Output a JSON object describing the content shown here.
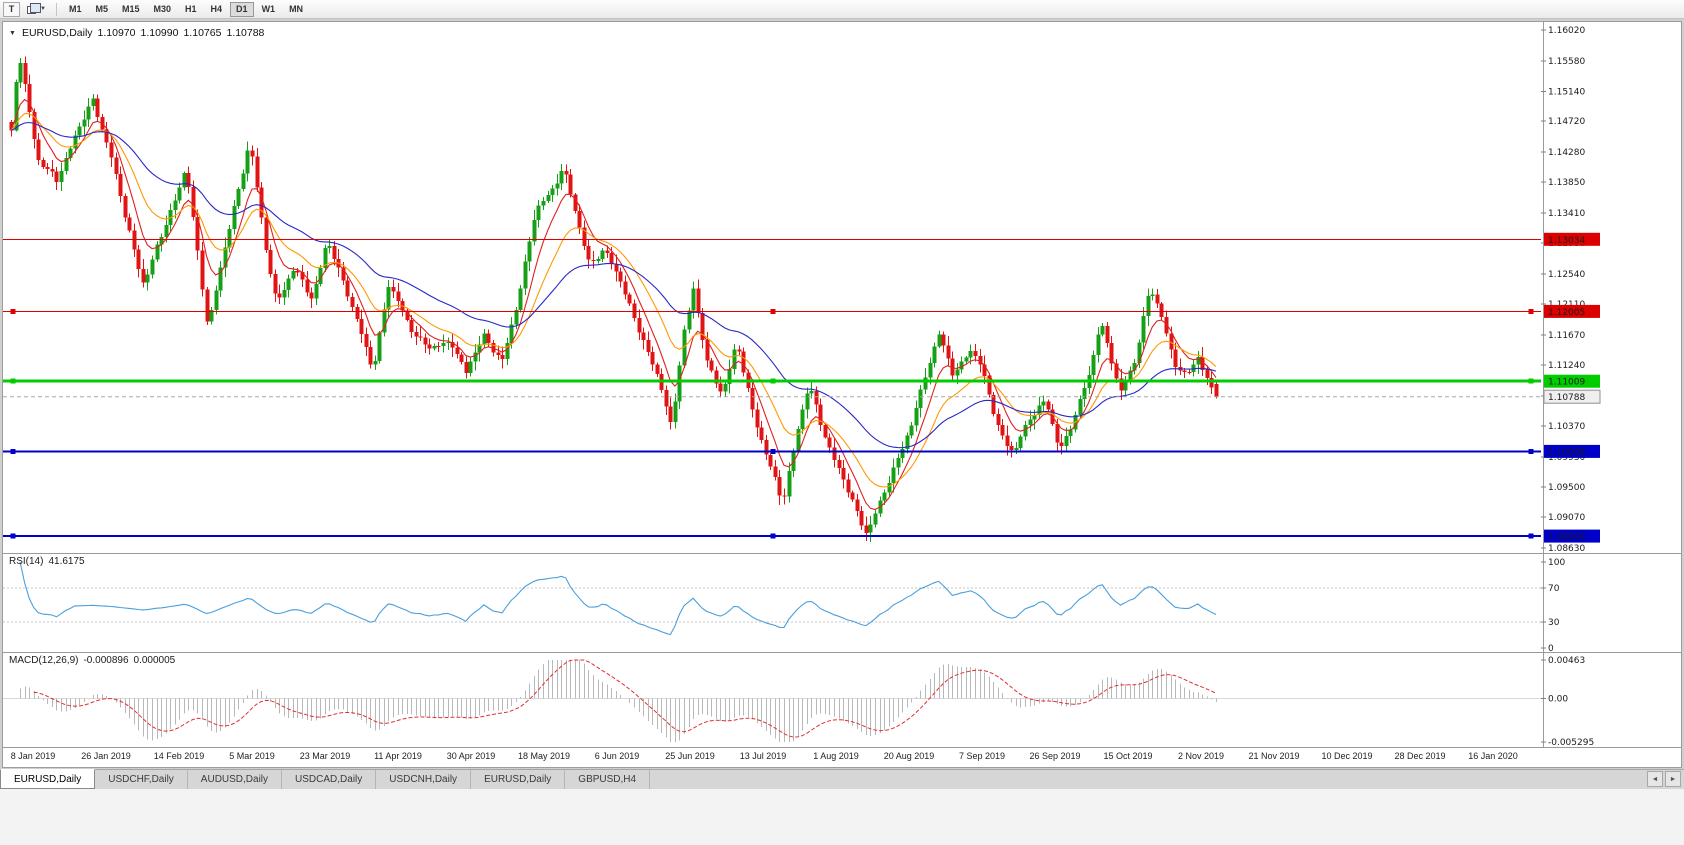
{
  "toolbar": {
    "tool_button": "T",
    "timeframes": [
      "M1",
      "M5",
      "M15",
      "M30",
      "H1",
      "H4",
      "D1",
      "W1",
      "MN"
    ],
    "active_timeframe": "D1"
  },
  "icons": {
    "collapse_arrow": "▼",
    "dropdown_caret": "▼",
    "scroll_left": "◄",
    "scroll_right": "►"
  },
  "header": {
    "symbol": "EURUSD,Daily",
    "open": "1.10970",
    "high": "1.10990",
    "low": "1.10765",
    "close": "1.10788"
  },
  "rsi_panel": {
    "label": "RSI(14)",
    "value": "41.6175"
  },
  "macd_panel": {
    "label": "MACD(12,26,9)",
    "value_main": "-0.000896",
    "value_signal": "0.000005"
  },
  "tabs": {
    "active_index": 0,
    "items": [
      "EURUSD,Daily",
      "USDCHF,Daily",
      "AUDUSD,Daily",
      "USDCAD,Daily",
      "USDCNH,Daily",
      "EURUSD,Daily",
      "GBPUSD,H4"
    ]
  },
  "chart_data": {
    "type": "candlestick",
    "symbol": "EURUSD",
    "period": "Daily",
    "y_axis": {
      "labels": [
        "1.16020",
        "1.15580",
        "1.15140",
        "1.14720",
        "1.14280",
        "1.13850",
        "1.13410",
        "1.12980",
        "1.12540",
        "1.12110",
        "1.11670",
        "1.11240",
        "1.10800",
        "1.10370",
        "1.09930",
        "1.09500",
        "1.09070",
        "1.08630"
      ],
      "range": [
        1.0863,
        1.1602
      ],
      "current_price": "1.10788"
    },
    "x_axis": {
      "labels": [
        "8 Jan 2019",
        "26 Jan 2019",
        "14 Feb 2019",
        "5 Mar 2019",
        "23 Mar 2019",
        "11 Apr 2019",
        "30 Apr 2019",
        "18 May 2019",
        "6 Jun 2019",
        "25 Jun 2019",
        "13 Jul 2019",
        "1 Aug 2019",
        "20 Aug 2019",
        "7 Sep 2019",
        "26 Sep 2019",
        "15 Oct 2019",
        "2 Nov 2019",
        "21 Nov 2019",
        "10 Dec 2019",
        "28 Dec 2019",
        "16 Jan 2020"
      ]
    },
    "candles": {
      "count": 266,
      "up_color": "#17a017",
      "down_color": "#e01414",
      "noise": 0.0007,
      "last": {
        "o": 1.1097,
        "h": 1.1099,
        "l": 1.10765,
        "c": 1.10788
      },
      "price_path": [
        [
          0.0,
          1.1455
        ],
        [
          0.006,
          1.157
        ],
        [
          0.022,
          1.142
        ],
        [
          0.038,
          1.1385
        ],
        [
          0.052,
          1.145
        ],
        [
          0.068,
          1.15
        ],
        [
          0.082,
          1.143
        ],
        [
          0.095,
          1.133
        ],
        [
          0.11,
          1.124
        ],
        [
          0.125,
          1.131
        ],
        [
          0.145,
          1.1405
        ],
        [
          0.163,
          1.118
        ],
        [
          0.18,
          1.131
        ],
        [
          0.198,
          1.1445
        ],
        [
          0.21,
          1.13
        ],
        [
          0.22,
          1.1215
        ],
        [
          0.235,
          1.126
        ],
        [
          0.25,
          1.122
        ],
        [
          0.262,
          1.13
        ],
        [
          0.278,
          1.1235
        ],
        [
          0.3,
          1.1115
        ],
        [
          0.313,
          1.124
        ],
        [
          0.33,
          1.118
        ],
        [
          0.348,
          1.1145
        ],
        [
          0.365,
          1.116
        ],
        [
          0.377,
          1.111
        ],
        [
          0.392,
          1.117
        ],
        [
          0.407,
          1.1125
        ],
        [
          0.42,
          1.1215
        ],
        [
          0.435,
          1.134
        ],
        [
          0.45,
          1.138
        ],
        [
          0.458,
          1.1405
        ],
        [
          0.47,
          1.133
        ],
        [
          0.48,
          1.127
        ],
        [
          0.492,
          1.1285
        ],
        [
          0.505,
          1.125
        ],
        [
          0.522,
          1.1165
        ],
        [
          0.538,
          1.1105
        ],
        [
          0.548,
          1.103
        ],
        [
          0.558,
          1.117
        ],
        [
          0.566,
          1.1235
        ],
        [
          0.578,
          1.112
        ],
        [
          0.59,
          1.1085
        ],
        [
          0.602,
          1.1155
        ],
        [
          0.615,
          1.106
        ],
        [
          0.628,
          1.099
        ],
        [
          0.64,
          1.0925
        ],
        [
          0.652,
          1.103
        ],
        [
          0.662,
          1.1095
        ],
        [
          0.672,
          1.104
        ],
        [
          0.682,
          1.0995
        ],
        [
          0.695,
          1.094
        ],
        [
          0.71,
          1.0885
        ],
        [
          0.722,
          1.093
        ],
        [
          0.735,
          1.099
        ],
        [
          0.748,
          1.104
        ],
        [
          0.76,
          1.112
        ],
        [
          0.77,
          1.117
        ],
        [
          0.782,
          1.1105
        ],
        [
          0.795,
          1.115
        ],
        [
          0.805,
          1.112
        ],
        [
          0.818,
          1.104
        ],
        [
          0.832,
          1.0995
        ],
        [
          0.845,
          1.105
        ],
        [
          0.858,
          1.1075
        ],
        [
          0.87,
          1.1
        ],
        [
          0.882,
          1.105
        ],
        [
          0.895,
          1.111
        ],
        [
          0.904,
          1.119
        ],
        [
          0.912,
          1.114
        ],
        [
          0.92,
          1.108
        ],
        [
          0.932,
          1.113
        ],
        [
          0.945,
          1.1235
        ],
        [
          0.955,
          1.119
        ],
        [
          0.965,
          1.113
        ],
        [
          0.975,
          1.1105
        ],
        [
          0.985,
          1.1135
        ],
        [
          0.994,
          1.11
        ],
        [
          1.0,
          1.1079
        ]
      ]
    },
    "moving_averages": [
      {
        "period": 7,
        "color": "#e02020"
      },
      {
        "period": 16,
        "color": "#ff9900"
      },
      {
        "period": 40,
        "color": "#2828c8"
      }
    ],
    "hlines": [
      {
        "price": 1.13034,
        "label": "1.13034",
        "color": "#dd0000",
        "width": 1,
        "handles": false
      },
      {
        "price": 1.12005,
        "label": "1.12005",
        "color": "#dd0000",
        "width": 1,
        "handles": true
      },
      {
        "price": 1.11009,
        "label": "1.11009",
        "color": "#00cc00",
        "width": 3,
        "handles": true
      },
      {
        "price": 1.10008,
        "label": "1.10008",
        "color": "#0000c8",
        "width": 2,
        "handles": true
      },
      {
        "price": 1.088,
        "label": "1.08800",
        "color": "#0000c8",
        "width": 2,
        "handles": true
      }
    ],
    "rsi": {
      "period": 14,
      "color": "#4a9fdc",
      "level_lines": [
        70,
        30
      ],
      "axis_labels": [
        "100",
        "70",
        "30",
        "0"
      ],
      "range": [
        0,
        100
      ]
    },
    "macd": {
      "fast": 12,
      "slow": 26,
      "signal": 9,
      "bar_color": "#b8b8b8",
      "signal_color": "#e03030",
      "axis_labels": [
        "0.00463",
        "0.00",
        "-0.005295"
      ],
      "range": [
        -0.005295,
        0.00463
      ]
    }
  }
}
